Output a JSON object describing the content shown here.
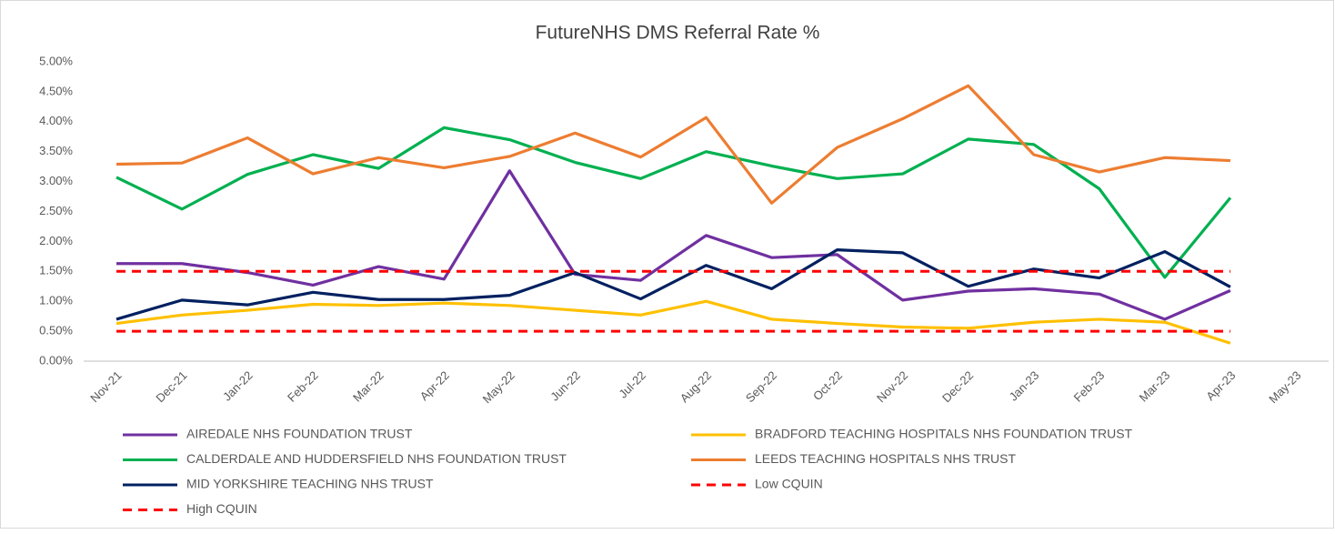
{
  "chart_data": {
    "type": "line",
    "title": "FutureNHS DMS Referral Rate %",
    "categories": [
      "Nov-21",
      "Dec-21",
      "Jan-22",
      "Feb-22",
      "Mar-22",
      "Apr-22",
      "May-22",
      "Jun-22",
      "Jul-22",
      "Aug-22",
      "Sep-22",
      "Oct-22",
      "Nov-22",
      "Dec-22",
      "Jan-23",
      "Feb-23",
      "Mar-23",
      "Apr-23",
      "May-23"
    ],
    "series": [
      {
        "name": "AIREDALE NHS FOUNDATION TRUST",
        "color": "#7030a0",
        "values": [
          1.63,
          1.63,
          1.48,
          1.27,
          1.58,
          1.37,
          3.18,
          1.45,
          1.35,
          2.1,
          1.73,
          1.78,
          1.02,
          1.17,
          1.21,
          1.12,
          0.7,
          1.18,
          null
        ]
      },
      {
        "name": "BRADFORD TEACHING HOSPITALS NHS FOUNDATION TRUST",
        "color": "#ffc000",
        "values": [
          0.63,
          0.77,
          0.85,
          0.95,
          0.93,
          0.97,
          0.93,
          0.85,
          0.77,
          1.0,
          0.7,
          0.63,
          0.57,
          0.55,
          0.65,
          0.7,
          0.65,
          0.3,
          null
        ]
      },
      {
        "name": "CALDERDALE AND HUDDERSFIELD NHS FOUNDATION TRUST",
        "color": "#00b050",
        "values": [
          3.07,
          2.54,
          3.12,
          3.45,
          3.22,
          3.9,
          3.7,
          3.32,
          3.05,
          3.5,
          3.26,
          3.05,
          3.13,
          3.71,
          3.62,
          2.88,
          1.4,
          2.73,
          null
        ]
      },
      {
        "name": "LEEDS TEACHING HOSPITALS NHS TRUST",
        "color": "#ed7d31",
        "values": [
          3.29,
          3.31,
          3.73,
          3.13,
          3.4,
          3.23,
          3.42,
          3.81,
          3.41,
          4.07,
          2.64,
          3.57,
          4.05,
          4.6,
          3.45,
          3.16,
          3.4,
          3.35,
          null
        ]
      },
      {
        "name": "MID YORKSHIRE TEACHING NHS TRUST",
        "color": "#002060",
        "values": [
          0.7,
          1.02,
          0.94,
          1.15,
          1.03,
          1.03,
          1.1,
          1.48,
          1.04,
          1.6,
          1.21,
          1.86,
          1.81,
          1.25,
          1.54,
          1.39,
          1.83,
          1.24,
          null
        ]
      },
      {
        "name": "Low CQUIN",
        "color": "#ff0000",
        "dashed": true,
        "values": [
          0.5,
          0.5,
          0.5,
          0.5,
          0.5,
          0.5,
          0.5,
          0.5,
          0.5,
          0.5,
          0.5,
          0.5,
          0.5,
          0.5,
          0.5,
          0.5,
          0.5,
          0.5,
          null
        ]
      },
      {
        "name": "High CQUIN",
        "color": "#ff0000",
        "dashed": true,
        "values": [
          1.5,
          1.5,
          1.5,
          1.5,
          1.5,
          1.5,
          1.5,
          1.5,
          1.5,
          1.5,
          1.5,
          1.5,
          1.5,
          1.5,
          1.5,
          1.5,
          1.5,
          1.5,
          null
        ]
      }
    ],
    "ylim": [
      0,
      5
    ],
    "yticks": [
      {
        "value": 0,
        "label": "0.00%"
      },
      {
        "value": 0.5,
        "label": "0.50%"
      },
      {
        "value": 1,
        "label": "1.00%"
      },
      {
        "value": 1.5,
        "label": "1.50%"
      },
      {
        "value": 2,
        "label": "2.00%"
      },
      {
        "value": 2.5,
        "label": "2.50%"
      },
      {
        "value": 3,
        "label": "3.00%"
      },
      {
        "value": 3.5,
        "label": "3.50%"
      },
      {
        "value": 4,
        "label": "4.00%"
      },
      {
        "value": 4.5,
        "label": "4.50%"
      },
      {
        "value": 5,
        "label": "5.00%"
      }
    ],
    "grid": false,
    "legend": "bottom"
  }
}
